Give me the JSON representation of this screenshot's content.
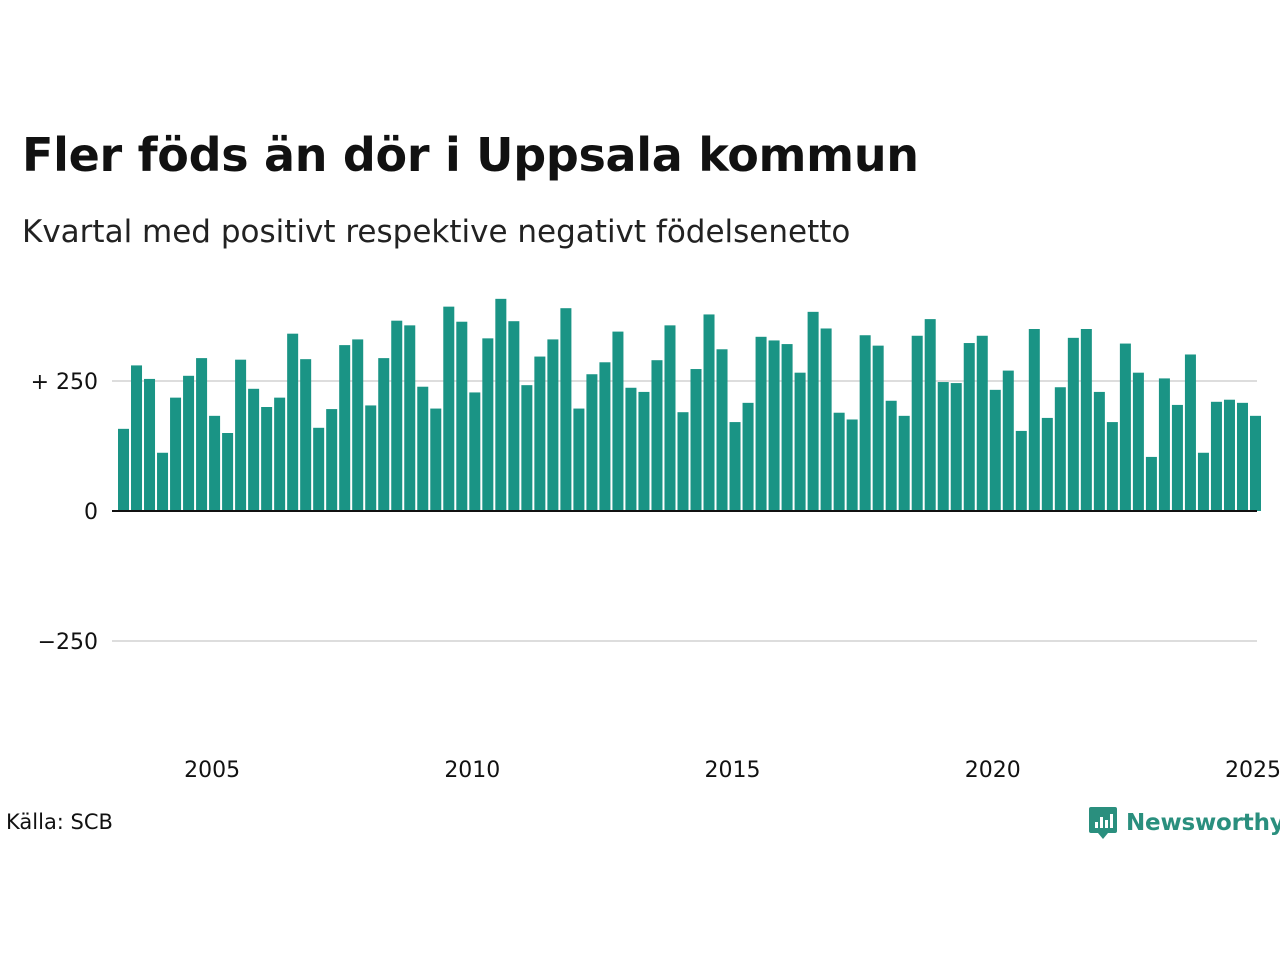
{
  "title": "Fler föds än dör i Uppsala kommun",
  "subtitle": "Kvartal med positivt respektive negativt födelsenetto",
  "source": "Källa: SCB",
  "brand": "Newsworthy",
  "colors": {
    "bar": "#1a9485",
    "grid": "#dddddd",
    "zero_line": "#111111",
    "brand": "#2a8f7e"
  },
  "icons": {
    "logo": "bar-chart-speech-bubble-icon"
  },
  "chart_data": {
    "type": "bar",
    "xlabel": "",
    "ylabel": "",
    "ylim": [
      -420,
      420
    ],
    "y_ticks": [
      {
        "value": 250,
        "label": "+ 250"
      },
      {
        "value": 0,
        "label": "0"
      },
      {
        "value": -250,
        "label": "−250"
      }
    ],
    "x_ticks": [
      {
        "value": 2005,
        "label": "2005"
      },
      {
        "value": 2010,
        "label": "2010"
      },
      {
        "value": 2015,
        "label": "2015"
      },
      {
        "value": 2020,
        "label": "2020"
      },
      {
        "value": 2025,
        "label": "2025"
      }
    ],
    "x_range": [
      2003.0,
      2025.0
    ],
    "grid": "horizontal",
    "start": "2003 Q1",
    "frequency": "quarterly",
    "values": [
      158,
      280,
      254,
      112,
      218,
      260,
      294,
      183,
      150,
      291,
      235,
      200,
      218,
      341,
      292,
      160,
      196,
      319,
      330,
      203,
      294,
      366,
      357,
      239,
      197,
      393,
      364,
      228,
      332,
      408,
      365,
      242,
      297,
      330,
      390,
      197,
      263,
      286,
      345,
      237,
      229,
      290,
      357,
      190,
      273,
      378,
      311,
      171,
      208,
      335,
      328,
      321,
      266,
      383,
      351,
      189,
      176,
      338,
      318,
      212,
      183,
      337,
      369,
      248,
      246,
      323,
      337,
      233,
      270,
      154,
      350,
      179,
      238,
      333,
      350,
      229,
      171,
      322,
      266,
      104,
      255,
      204,
      301,
      112,
      210,
      214,
      208,
      183
    ]
  }
}
